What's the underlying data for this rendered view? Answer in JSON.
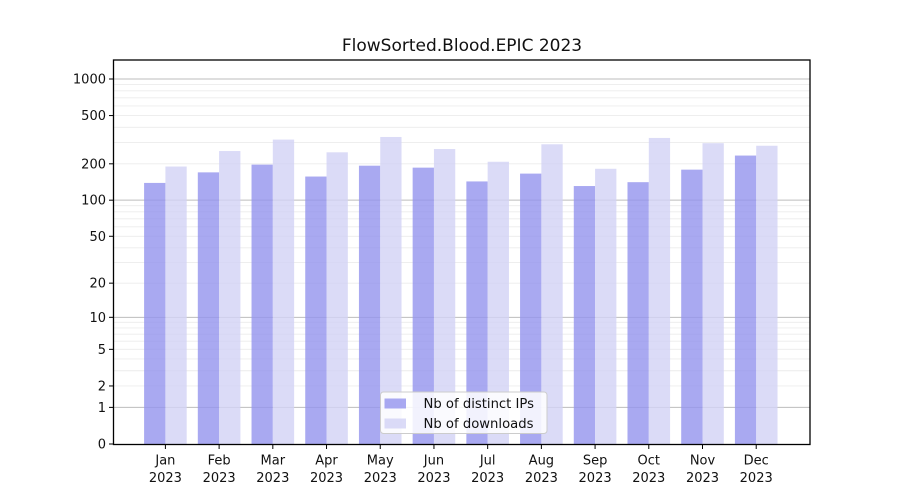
{
  "chart_data": {
    "type": "bar",
    "title": "FlowSorted.Blood.EPIC 2023",
    "categories": [
      "Jan 2023",
      "Feb 2023",
      "Mar 2023",
      "Apr 2023",
      "May 2023",
      "Jun 2023",
      "Jul 2023",
      "Aug 2023",
      "Sep 2023",
      "Oct 2023",
      "Nov 2023",
      "Dec 2023"
    ],
    "series": [
      {
        "name": "Nb of distinct IPs",
        "color_key": "ips",
        "values": [
          139,
          170,
          197,
          157,
          193,
          186,
          143,
          166,
          131,
          141,
          179,
          234
        ]
      },
      {
        "name": "Nb of downloads",
        "color_key": "downloads",
        "values": [
          190,
          255,
          317,
          249,
          333,
          265,
          208,
          290,
          182,
          327,
          296,
          282
        ]
      }
    ],
    "yscale": "log1p",
    "yticks": [
      0,
      1,
      2,
      5,
      10,
      20,
      50,
      100,
      200,
      500,
      1000
    ],
    "ylim": [
      0,
      1450
    ],
    "xlabel": "",
    "ylabel": "",
    "grid": {
      "major_at": [
        1,
        10,
        100,
        1000
      ],
      "minor_log_decades": true
    },
    "legend_position": "inside-bottom-center",
    "colors": {
      "ips": "#9494ee",
      "downloads": "#d2d2f5",
      "bar_opacity": "0.8",
      "major_grid": "#bdbdbd",
      "minor_grid": "#ececec",
      "axis": "#000000",
      "legend_border": "#cccccc"
    }
  }
}
